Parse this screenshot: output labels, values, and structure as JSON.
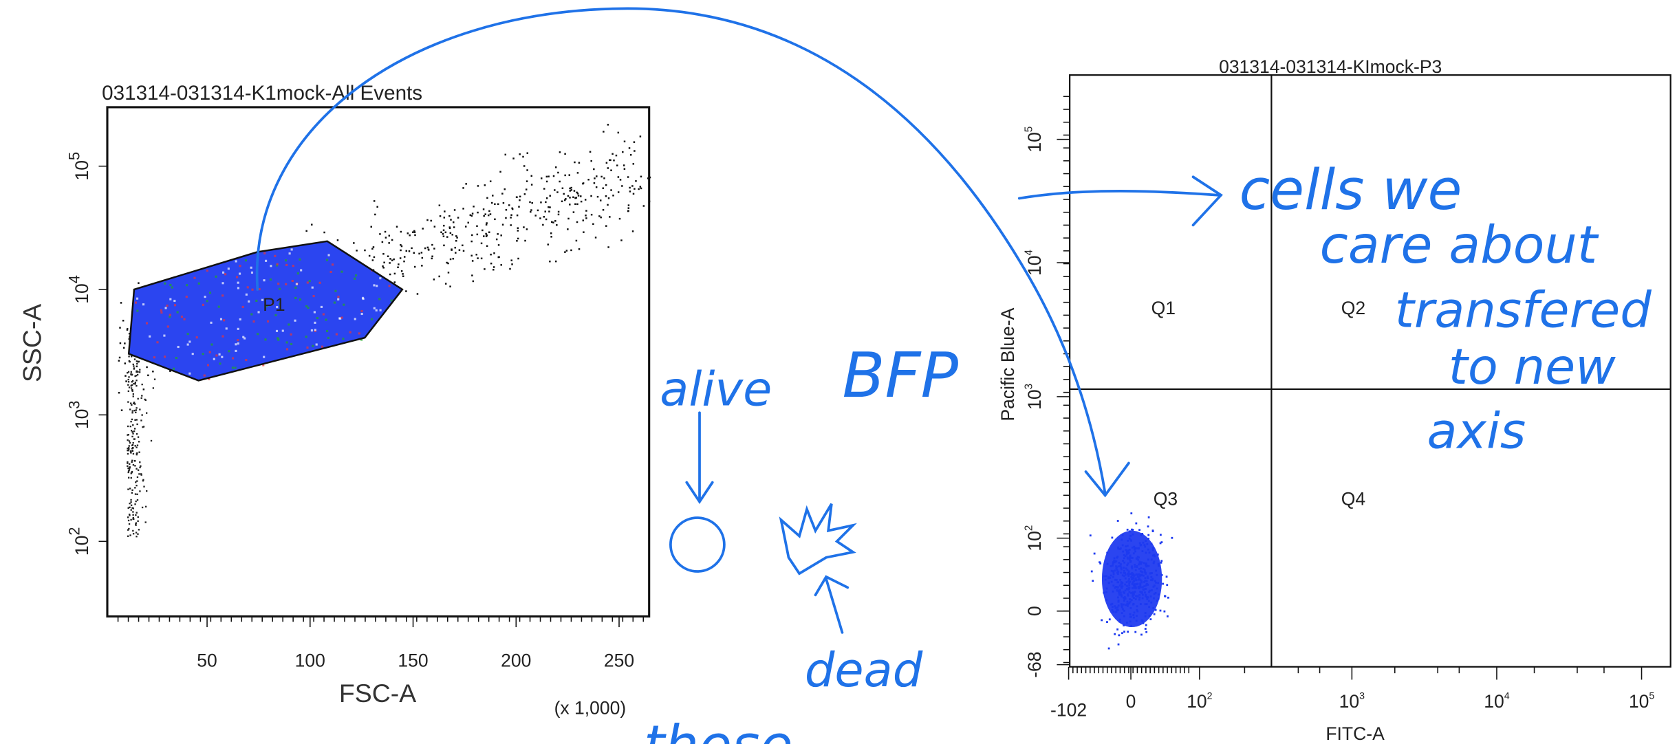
{
  "left_plot": {
    "title": "031314-031314-K1mock-All Events",
    "y_label": "SSC-A",
    "x_label": "FSC-A",
    "x_unit": "(x 1,000)",
    "y_ticks": [
      {
        "base": "10",
        "exp": "5"
      },
      {
        "base": "10",
        "exp": "4"
      },
      {
        "base": "10",
        "exp": "3"
      },
      {
        "base": "10",
        "exp": "2"
      }
    ],
    "x_ticks": [
      "50",
      "100",
      "150",
      "200",
      "250"
    ],
    "gate": "P1"
  },
  "right_plot": {
    "title": "031314-031314-KImock-P3",
    "y_label": "Pacific Blue-A",
    "x_label": "FITC-A",
    "y_ticks": [
      {
        "base": "10",
        "exp": "5"
      },
      {
        "base": "10",
        "exp": "4"
      },
      {
        "base": "10",
        "exp": "3"
      },
      {
        "base": "10",
        "exp": "2"
      },
      {
        "base": "0",
        "exp": ""
      },
      {
        "base": "-68",
        "exp": ""
      }
    ],
    "x_ticks": [
      {
        "base": "-102",
        "exp": ""
      },
      {
        "base": "0",
        "exp": ""
      },
      {
        "base": "10",
        "exp": "2"
      },
      {
        "base": "10",
        "exp": "3"
      },
      {
        "base": "10",
        "exp": "4"
      },
      {
        "base": "10",
        "exp": "5"
      }
    ],
    "quadrants": [
      "Q1",
      "Q2",
      "Q3",
      "Q4"
    ]
  },
  "annotations": {
    "alive": "alive",
    "bfp": "BFP",
    "dead": "dead",
    "note": [
      "cells we",
      "care about",
      "transfered",
      "to new",
      "axis"
    ],
    "bottom": "these"
  }
}
